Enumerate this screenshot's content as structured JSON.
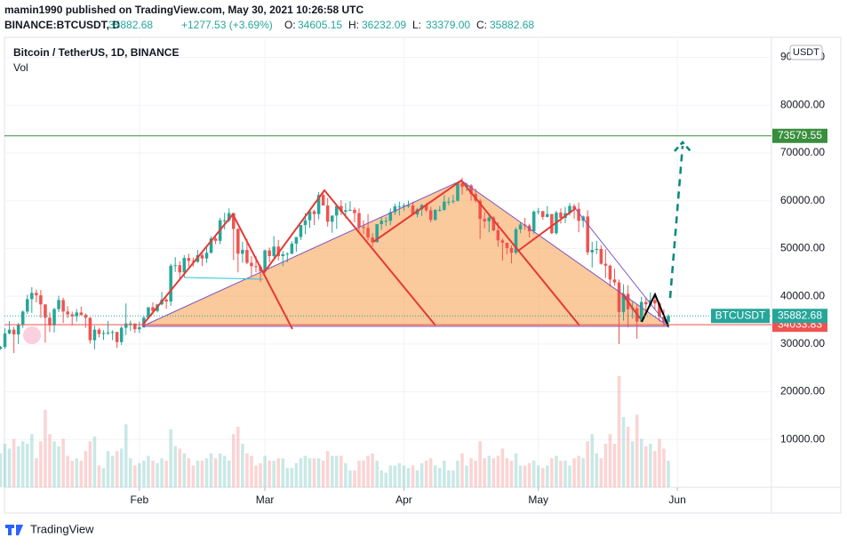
{
  "header": {
    "author": "mamin1990 published on TradingView.com, May 30, 2021 10:26:58 UTC",
    "symbol": "BINANCE:BTCUSDT, D",
    "last": "35882.68",
    "change": "+1277.53 (+3.69%)",
    "ohlc": [
      {
        "label": "O:",
        "value": "34605.15"
      },
      {
        "label": "H:",
        "value": "36232.09"
      },
      {
        "label": "L:",
        "value": "33379.00"
      },
      {
        "label": "C:",
        "value": "35882.68"
      }
    ]
  },
  "chart_data": {
    "type": "candlestick",
    "title": "Bitcoin / TetherUS, 1D, BINANCE",
    "volume_label": "Vol",
    "currency": "USDT",
    "up_color": "#26a69a",
    "down_color": "#ef5350",
    "grid": true,
    "ylim": [
      0,
      94200
    ],
    "yticks": [
      {
        "value": 10000,
        "label": "10000.00"
      },
      {
        "value": 20000,
        "label": "20000.00"
      },
      {
        "value": 30000,
        "label": "30000.00"
      },
      {
        "value": 40000,
        "label": "40000.00"
      },
      {
        "value": 50000,
        "label": "50000.00"
      },
      {
        "value": 60000,
        "label": "60000.00"
      },
      {
        "value": 70000,
        "label": "70000.00"
      },
      {
        "value": 80000,
        "label": "80000.00"
      },
      {
        "value": 90000,
        "label": "90000.00"
      }
    ],
    "xlim": [
      -0.1,
      172
    ],
    "xticks": [
      {
        "value": 31,
        "label": "Feb"
      },
      {
        "value": 59,
        "label": "Mar"
      },
      {
        "value": 90,
        "label": "Apr"
      },
      {
        "value": 120,
        "label": "May"
      },
      {
        "value": 151,
        "label": "Jun"
      }
    ],
    "levels": [
      {
        "value": 73579.55,
        "color": "#388e3c"
      },
      {
        "value": 34033.83,
        "color": "#ef5350"
      }
    ],
    "last_price": {
      "name": "BTCUSDT",
      "value": 35882.68,
      "color": "#26a69a"
    },
    "volume_lim": [
      0,
      270
    ],
    "candles": [
      [
        29000,
        29600,
        28800,
        29400
      ],
      [
        29400,
        33300,
        29000,
        32200
      ],
      [
        32200,
        34800,
        32000,
        33000
      ],
      [
        33000,
        33600,
        28100,
        32000
      ],
      [
        32000,
        34400,
        30000,
        34000
      ],
      [
        34000,
        37000,
        33400,
        36800
      ],
      [
        36800,
        40300,
        36300,
        39400
      ],
      [
        39400,
        41900,
        36500,
        40700
      ],
      [
        40700,
        41400,
        38700,
        40200
      ],
      [
        40200,
        41300,
        35500,
        38300
      ],
      [
        38300,
        38300,
        30300,
        35500
      ],
      [
        35500,
        36600,
        32500,
        33900
      ],
      [
        33900,
        37600,
        32400,
        37300
      ],
      [
        37300,
        40100,
        36700,
        39200
      ],
      [
        39200,
        39700,
        34400,
        36800
      ],
      [
        36800,
        37900,
        35400,
        36200
      ],
      [
        36200,
        36800,
        33900,
        35800
      ],
      [
        35800,
        37300,
        34700,
        36600
      ],
      [
        36600,
        37800,
        35900,
        36100
      ],
      [
        36100,
        36400,
        33400,
        35500
      ],
      [
        35500,
        35600,
        30100,
        30800
      ],
      [
        30800,
        33800,
        28900,
        33000
      ],
      [
        33000,
        33400,
        31400,
        32100
      ],
      [
        32100,
        32900,
        30900,
        32300
      ],
      [
        32300,
        34800,
        31900,
        32400
      ],
      [
        32400,
        32900,
        30800,
        32500
      ],
      [
        32500,
        32600,
        29200,
        30400
      ],
      [
        30400,
        33800,
        29800,
        33400
      ],
      [
        33400,
        38500,
        31900,
        34300
      ],
      [
        34300,
        34900,
        32800,
        34300
      ],
      [
        34300,
        34300,
        32300,
        33100
      ],
      [
        33100,
        34700,
        32300,
        33500
      ],
      [
        33500,
        35900,
        33400,
        35500
      ],
      [
        35500,
        37700,
        35400,
        37700
      ],
      [
        37700,
        38700,
        36200,
        36900
      ],
      [
        36900,
        38300,
        36600,
        38300
      ],
      [
        38300,
        40900,
        38100,
        39300
      ],
      [
        39300,
        39700,
        37400,
        38900
      ],
      [
        38900,
        46800,
        38000,
        46400
      ],
      [
        46400,
        48200,
        45100,
        46500
      ],
      [
        46500,
        47300,
        43700,
        45000
      ],
      [
        45000,
        48600,
        44000,
        48000
      ],
      [
        48000,
        48900,
        46200,
        47400
      ],
      [
        47400,
        48100,
        46200,
        47200
      ],
      [
        47200,
        49700,
        47000,
        48600
      ],
      [
        48600,
        49000,
        46300,
        47900
      ],
      [
        47900,
        50600,
        47000,
        49100
      ],
      [
        49100,
        52600,
        48900,
        52100
      ],
      [
        52100,
        52500,
        50900,
        51600
      ],
      [
        51600,
        56400,
        50900,
        55900
      ],
      [
        55900,
        57500,
        54000,
        55900
      ],
      [
        55900,
        58400,
        55500,
        57400
      ],
      [
        57400,
        57500,
        47600,
        54100
      ],
      [
        54100,
        54200,
        45000,
        48900
      ],
      [
        48900,
        51400,
        47000,
        49700
      ],
      [
        49700,
        52000,
        46700,
        47000
      ],
      [
        47000,
        48400,
        44100,
        46300
      ],
      [
        46300,
        48400,
        45000,
        46200
      ],
      [
        46200,
        46600,
        43000,
        45200
      ],
      [
        45200,
        49800,
        45000,
        49600
      ],
      [
        49600,
        50200,
        47100,
        48400
      ],
      [
        48400,
        52600,
        48100,
        50400
      ],
      [
        50400,
        51800,
        47500,
        48400
      ],
      [
        48400,
        49500,
        46300,
        48800
      ],
      [
        48800,
        49200,
        47100,
        48900
      ],
      [
        48900,
        51500,
        48800,
        51000
      ],
      [
        51000,
        52400,
        49300,
        52400
      ],
      [
        52400,
        54900,
        51800,
        54900
      ],
      [
        54900,
        57400,
        53000,
        55900
      ],
      [
        55900,
        58200,
        54300,
        57800
      ],
      [
        57800,
        58100,
        54900,
        57200
      ],
      [
        57200,
        61800,
        56100,
        61200
      ],
      [
        61200,
        61700,
        59000,
        59000
      ],
      [
        59000,
        60600,
        54600,
        55600
      ],
      [
        55600,
        56900,
        53300,
        56900
      ],
      [
        56900,
        58900,
        54100,
        58900
      ],
      [
        58900,
        60100,
        57000,
        57700
      ],
      [
        57700,
        59500,
        56300,
        58000
      ],
      [
        58000,
        59900,
        57800,
        58100
      ],
      [
        58100,
        58600,
        55500,
        57400
      ],
      [
        57400,
        58400,
        53700,
        54500
      ],
      [
        54500,
        55900,
        53000,
        54300
      ],
      [
        54300,
        57200,
        51700,
        52300
      ],
      [
        52300,
        53200,
        50400,
        51300
      ],
      [
        51300,
        55100,
        51300,
        55100
      ],
      [
        55100,
        56600,
        53900,
        55800
      ],
      [
        55800,
        56600,
        54700,
        55800
      ],
      [
        55800,
        58400,
        54900,
        57600
      ],
      [
        57600,
        59400,
        57000,
        58800
      ],
      [
        58800,
        59800,
        56900,
        58800
      ],
      [
        58800,
        59500,
        57900,
        59000
      ],
      [
        59000,
        60000,
        58500,
        59000
      ],
      [
        59000,
        59800,
        57000,
        57100
      ],
      [
        57100,
        58500,
        56500,
        58200
      ],
      [
        58200,
        59300,
        56800,
        59100
      ],
      [
        59100,
        59500,
        57600,
        58000
      ],
      [
        58000,
        58700,
        55500,
        56000
      ],
      [
        56000,
        58200,
        55800,
        58100
      ],
      [
        58100,
        58900,
        57700,
        58100
      ],
      [
        58100,
        61200,
        57900,
        59800
      ],
      [
        59800,
        60700,
        59000,
        59800
      ],
      [
        59800,
        61200,
        59400,
        60000
      ],
      [
        60000,
        63800,
        59800,
        63600
      ],
      [
        63600,
        64800,
        61300,
        62900
      ],
      [
        62900,
        63800,
        62000,
        63200
      ],
      [
        63200,
        63500,
        60000,
        61400
      ],
      [
        61400,
        62500,
        59600,
        60000
      ],
      [
        60000,
        60400,
        52000,
        56200
      ],
      [
        56200,
        57600,
        54200,
        55700
      ],
      [
        55700,
        57100,
        53400,
        56500
      ],
      [
        56500,
        56800,
        53600,
        53800
      ],
      [
        53800,
        55500,
        50400,
        51700
      ],
      [
        51700,
        52100,
        47500,
        51200
      ],
      [
        51200,
        51200,
        48800,
        50100
      ],
      [
        50100,
        50600,
        46900,
        49100
      ],
      [
        49100,
        54400,
        48800,
        54000
      ],
      [
        54000,
        55500,
        53200,
        55000
      ],
      [
        55000,
        56400,
        53900,
        54800
      ],
      [
        54800,
        55200,
        52300,
        53600
      ],
      [
        53600,
        58000,
        53100,
        57700
      ],
      [
        57700,
        58500,
        57100,
        57800
      ],
      [
        57800,
        57900,
        56000,
        56600
      ],
      [
        56600,
        58900,
        56500,
        57200
      ],
      [
        57200,
        57200,
        53000,
        53200
      ],
      [
        53200,
        57900,
        52900,
        57500
      ],
      [
        57500,
        58400,
        55200,
        56400
      ],
      [
        56400,
        58700,
        55300,
        57400
      ],
      [
        57400,
        59500,
        56900,
        58900
      ],
      [
        58900,
        59300,
        56200,
        58300
      ],
      [
        58300,
        59600,
        53400,
        55800
      ],
      [
        55800,
        56900,
        54400,
        56700
      ],
      [
        56700,
        58000,
        48600,
        49200
      ],
      [
        49200,
        51400,
        46000,
        49700
      ],
      [
        49700,
        51600,
        48800,
        49900
      ],
      [
        49900,
        50700,
        46600,
        46800
      ],
      [
        46800,
        49800,
        43800,
        46400
      ],
      [
        46400,
        46600,
        42000,
        43500
      ],
      [
        43500,
        45800,
        42200,
        42900
      ],
      [
        42900,
        43500,
        30000,
        36700
      ],
      [
        36700,
        42500,
        34900,
        40500
      ],
      [
        40500,
        42300,
        33500,
        37300
      ],
      [
        37300,
        38800,
        35300,
        37500
      ],
      [
        37500,
        38300,
        31100,
        34700
      ],
      [
        34700,
        39900,
        34600,
        38800
      ],
      [
        38800,
        39800,
        36400,
        38300
      ],
      [
        38300,
        40800,
        37800,
        39200
      ],
      [
        39200,
        40400,
        37200,
        38500
      ],
      [
        38500,
        38800,
        34700,
        35700
      ],
      [
        35700,
        37300,
        33600,
        34600
      ],
      [
        34605.15,
        36232.09,
        33379,
        35882.68
      ]
    ],
    "volume": [
      70,
      90,
      80,
      100,
      85,
      95,
      90,
      110,
      60,
      95,
      160,
      110,
      95,
      85,
      100,
      65,
      55,
      60,
      55,
      75,
      95,
      105,
      45,
      40,
      75,
      65,
      75,
      80,
      130,
      60,
      45,
      50,
      55,
      65,
      55,
      50,
      60,
      55,
      120,
      85,
      80,
      70,
      60,
      45,
      55,
      55,
      60,
      70,
      60,
      70,
      65,
      55,
      110,
      125,
      90,
      70,
      65,
      45,
      50,
      65,
      55,
      55,
      60,
      60,
      40,
      40,
      50,
      60,
      65,
      60,
      60,
      60,
      55,
      75,
      65,
      65,
      65,
      50,
      35,
      35,
      55,
      55,
      65,
      70,
      55,
      35,
      30,
      45,
      45,
      50,
      45,
      40,
      45,
      35,
      50,
      55,
      60,
      45,
      40,
      55,
      35,
      35,
      55,
      70,
      45,
      60,
      55,
      95,
      60,
      65,
      60,
      65,
      80,
      60,
      55,
      70,
      45,
      45,
      50,
      55,
      45,
      40,
      45,
      60,
      65,
      55,
      55,
      45,
      60,
      65,
      60,
      95,
      110,
      70,
      60,
      90,
      110,
      90,
      230,
      145,
      125,
      95,
      150,
      100,
      85,
      90,
      75,
      100,
      80,
      55
    ]
  },
  "footer": {
    "brand": "TradingView"
  }
}
